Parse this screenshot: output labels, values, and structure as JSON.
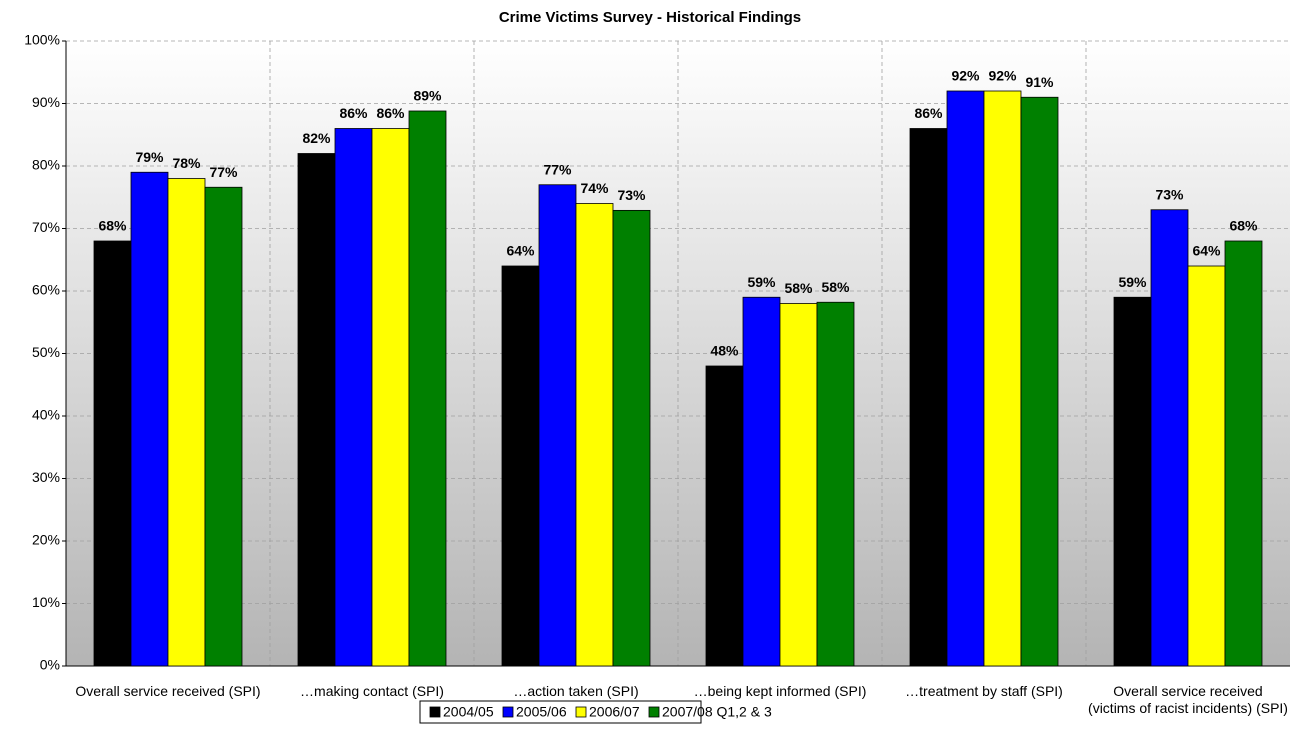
{
  "chart_data": {
    "type": "bar",
    "title": "Crime Victims Survey - Historical Findings",
    "categories": [
      "Overall service received (SPI)",
      "…making contact (SPI)",
      "…action taken (SPI)",
      "…being kept informed (SPI)",
      "…treatment by staff (SPI)",
      "Overall service received (victims of racist incidents) (SPI)"
    ],
    "series": [
      {
        "name": "2004/05",
        "color": "#000000",
        "values": [
          68,
          82,
          64,
          48,
          86,
          59
        ],
        "value_labels": [
          "68%",
          "82%",
          "64%",
          "48%",
          "86%",
          "59%"
        ]
      },
      {
        "name": "2005/06",
        "color": "#0000ff",
        "values": [
          79,
          86,
          77,
          59,
          92,
          73
        ],
        "value_labels": [
          "79%",
          "86%",
          "77%",
          "59%",
          "92%",
          "73%"
        ]
      },
      {
        "name": "2006/07",
        "color": "#ffff00",
        "values": [
          78,
          86,
          74,
          58,
          92,
          64
        ],
        "value_labels": [
          "78%",
          "86%",
          "74%",
          "58%",
          "92%",
          "64%"
        ]
      },
      {
        "name": "2007/08 Q1,2 & 3",
        "color": "#008000",
        "values": [
          76.6,
          88.8,
          72.9,
          58.2,
          91,
          68
        ],
        "value_labels": [
          "77%",
          "89%",
          "73%",
          "58%",
          "91%",
          "68%"
        ]
      }
    ],
    "ylim": [
      0,
      100
    ],
    "yticks": [
      {
        "value": 0,
        "label": "0%"
      },
      {
        "value": 10,
        "label": "10%"
      },
      {
        "value": 20,
        "label": "20%"
      },
      {
        "value": 30,
        "label": "30%"
      },
      {
        "value": 40,
        "label": "40%"
      },
      {
        "value": 50,
        "label": "50%"
      },
      {
        "value": 60,
        "label": "60%"
      },
      {
        "value": 70,
        "label": "70%"
      },
      {
        "value": 80,
        "label": "80%"
      },
      {
        "value": 90,
        "label": "90%"
      },
      {
        "value": 100,
        "label": "100%"
      }
    ],
    "grid": true,
    "legend": "bottom"
  }
}
